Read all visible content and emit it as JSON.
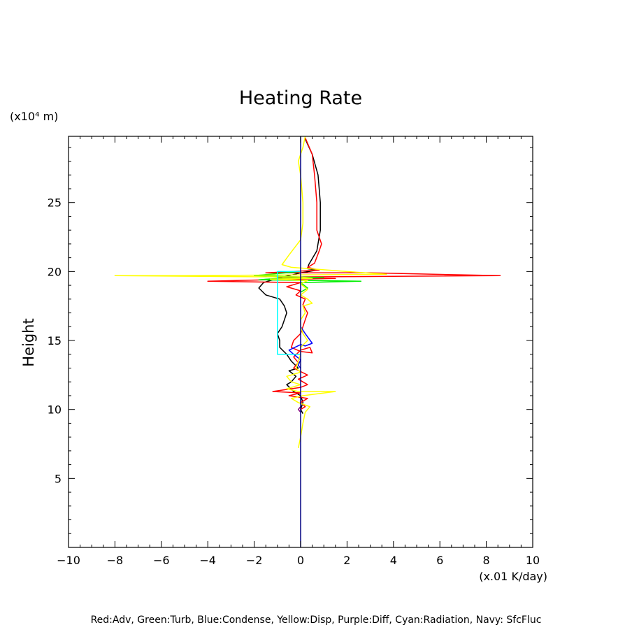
{
  "chart_data": {
    "type": "line",
    "title": "Heating Rate",
    "xlabel": "(x.01 K/day)",
    "ylabel": "Height",
    "yunit_label": "(x10⁴ m)",
    "caption": "Red:Adv, Green:Turb, Blue:Condense, Yellow:Disp, Purple:Diff, Cyan:Radiation, Navy: SfcFluc",
    "xlim": [
      -10,
      10
    ],
    "ylim": [
      0,
      29.8
    ],
    "xticks": [
      -10,
      -8,
      -6,
      -4,
      -2,
      0,
      2,
      4,
      6,
      8,
      10
    ],
    "xtick_labels": [
      "−10",
      "−8",
      "−6",
      "−4",
      "−2",
      "0",
      "2",
      "4",
      "6",
      "8",
      "10"
    ],
    "yticks": [
      5,
      10,
      15,
      20,
      25
    ],
    "ytick_labels": [
      "5",
      "10",
      "15",
      "20",
      "25"
    ],
    "grid": false,
    "series": [
      {
        "color": "#000000",
        "points": [
          [
            0.2,
            29.6
          ],
          [
            0.5,
            28.5
          ],
          [
            0.75,
            27
          ],
          [
            0.85,
            25
          ],
          [
            0.85,
            23
          ],
          [
            0.7,
            21.5
          ],
          [
            0.35,
            20.5
          ],
          [
            0.3,
            20.2
          ],
          [
            0.7,
            20.1
          ],
          [
            0,
            19.9
          ],
          [
            -1,
            19.5
          ],
          [
            -1.6,
            19.2
          ],
          [
            -1.8,
            18.8
          ],
          [
            -1.5,
            18.3
          ],
          [
            -0.9,
            18
          ],
          [
            -0.7,
            17.5
          ],
          [
            -0.6,
            17
          ],
          [
            -0.7,
            16.5
          ],
          [
            -0.8,
            16
          ],
          [
            -1,
            15.5
          ],
          [
            -0.9,
            15
          ],
          [
            -0.9,
            14.5
          ],
          [
            -0.6,
            14
          ],
          [
            -0.4,
            13.5
          ],
          [
            -0.1,
            13
          ],
          [
            -0.5,
            12.8
          ],
          [
            -0.2,
            12.4
          ],
          [
            -0.4,
            12
          ],
          [
            -0.6,
            11.8
          ],
          [
            -0.3,
            11.3
          ],
          [
            0,
            11
          ],
          [
            0.1,
            10.5
          ],
          [
            0,
            10
          ],
          [
            0.1,
            9.7
          ]
        ]
      },
      {
        "color": "#ff0000",
        "points": [
          [
            0.2,
            29.7
          ],
          [
            0.5,
            28.5
          ],
          [
            0.6,
            27
          ],
          [
            0.7,
            25
          ],
          [
            0.7,
            23
          ],
          [
            0.9,
            22
          ],
          [
            0.8,
            21.5
          ],
          [
            0.6,
            20.6
          ],
          [
            0.3,
            20.3
          ],
          [
            0.8,
            20.1
          ],
          [
            -1.5,
            19.9
          ],
          [
            3,
            19.9
          ],
          [
            8.6,
            19.7
          ],
          [
            -1,
            19.6
          ],
          [
            1.5,
            19.5
          ],
          [
            -1.5,
            19.4
          ],
          [
            -4,
            19.3
          ],
          [
            0,
            19.2
          ],
          [
            -0.6,
            18.9
          ],
          [
            0,
            18.6
          ],
          [
            -0.2,
            18.3
          ],
          [
            0.2,
            18
          ],
          [
            0.1,
            17.6
          ],
          [
            0.3,
            17
          ],
          [
            0.2,
            16.5
          ],
          [
            0.1,
            16
          ],
          [
            0,
            15.5
          ],
          [
            -0.3,
            15
          ],
          [
            -0.4,
            14.5
          ],
          [
            0,
            14.2
          ],
          [
            0.5,
            14.1
          ],
          [
            0.4,
            14.5
          ],
          [
            0,
            14.3
          ],
          [
            -0.3,
            13.8
          ],
          [
            -0.1,
            13.4
          ],
          [
            -0.3,
            13
          ],
          [
            0.3,
            12.5
          ],
          [
            -0.1,
            12.2
          ],
          [
            0.3,
            11.8
          ],
          [
            0,
            11.6
          ],
          [
            -1.2,
            11.3
          ],
          [
            0,
            11.2
          ],
          [
            -0.5,
            11
          ],
          [
            0.3,
            10.8
          ],
          [
            0,
            10.5
          ],
          [
            0.2,
            10.2
          ],
          [
            0,
            10
          ]
        ]
      },
      {
        "color": "#00ee00",
        "points": [
          [
            0,
            20
          ],
          [
            -2,
            19.7
          ],
          [
            1,
            19.55
          ],
          [
            -1,
            19.5
          ],
          [
            -1.8,
            19.4
          ],
          [
            2.6,
            19.3
          ],
          [
            0,
            19.2
          ],
          [
            0.3,
            18.8
          ],
          [
            0,
            18.5
          ]
        ]
      },
      {
        "color": "#0000ff",
        "points": [
          [
            0,
            16
          ],
          [
            0.2,
            15.5
          ],
          [
            0.5,
            14.8
          ],
          [
            0.2,
            14.6
          ],
          [
            0,
            14.7
          ],
          [
            -0.5,
            14.3
          ],
          [
            -0.3,
            14
          ],
          [
            0,
            13.6
          ],
          [
            -0.1,
            13.2
          ],
          [
            0,
            13
          ]
        ]
      },
      {
        "color": "#ffff00",
        "points": [
          [
            0.2,
            29.8
          ],
          [
            0.1,
            29
          ],
          [
            -0.1,
            28
          ],
          [
            0,
            27
          ],
          [
            0.1,
            25
          ],
          [
            0.1,
            23.5
          ],
          [
            0,
            22.3
          ],
          [
            -0.5,
            21.2
          ],
          [
            -0.8,
            20.5
          ],
          [
            -0.4,
            20.3
          ],
          [
            2,
            20
          ],
          [
            3.7,
            19.8
          ],
          [
            -5,
            19.7
          ],
          [
            -8,
            19.7
          ],
          [
            0,
            19.6
          ],
          [
            0.5,
            19.5
          ],
          [
            -1.3,
            19.45
          ],
          [
            0.3,
            19.35
          ],
          [
            0,
            19.1
          ],
          [
            0.3,
            18.7
          ],
          [
            0,
            18.3
          ],
          [
            0.3,
            18
          ],
          [
            0.5,
            17.7
          ],
          [
            0.1,
            17.5
          ],
          [
            0.2,
            17
          ],
          [
            0,
            16.5
          ],
          [
            0,
            16
          ],
          [
            0.1,
            15.5
          ],
          [
            0.3,
            15
          ],
          [
            0,
            14.5
          ],
          [
            0,
            14
          ],
          [
            -0.2,
            13
          ],
          [
            0,
            12.7
          ],
          [
            -0.6,
            12.4
          ],
          [
            -0.4,
            12
          ],
          [
            0,
            11.8
          ],
          [
            -0.6,
            11.5
          ],
          [
            -0.1,
            11.3
          ],
          [
            1.5,
            11.3
          ],
          [
            0.1,
            11
          ],
          [
            -0.4,
            10.8
          ],
          [
            -0.1,
            10.5
          ],
          [
            0.4,
            10.2
          ],
          [
            0.2,
            9.8
          ],
          [
            0.1,
            9
          ],
          [
            0,
            8
          ],
          [
            -0.1,
            7.2
          ]
        ]
      },
      {
        "color": "#800080",
        "points": [
          [
            0,
            10.2
          ],
          [
            -0.1,
            10
          ],
          [
            0,
            9.8
          ]
        ]
      },
      {
        "color": "#00ffff",
        "points": [
          [
            0,
            20
          ],
          [
            -1,
            20
          ],
          [
            -1,
            14
          ],
          [
            -0.6,
            14
          ],
          [
            0,
            14
          ]
        ]
      },
      {
        "color": "#000080",
        "points": [
          [
            0,
            29.8
          ],
          [
            0,
            0
          ]
        ]
      }
    ]
  }
}
